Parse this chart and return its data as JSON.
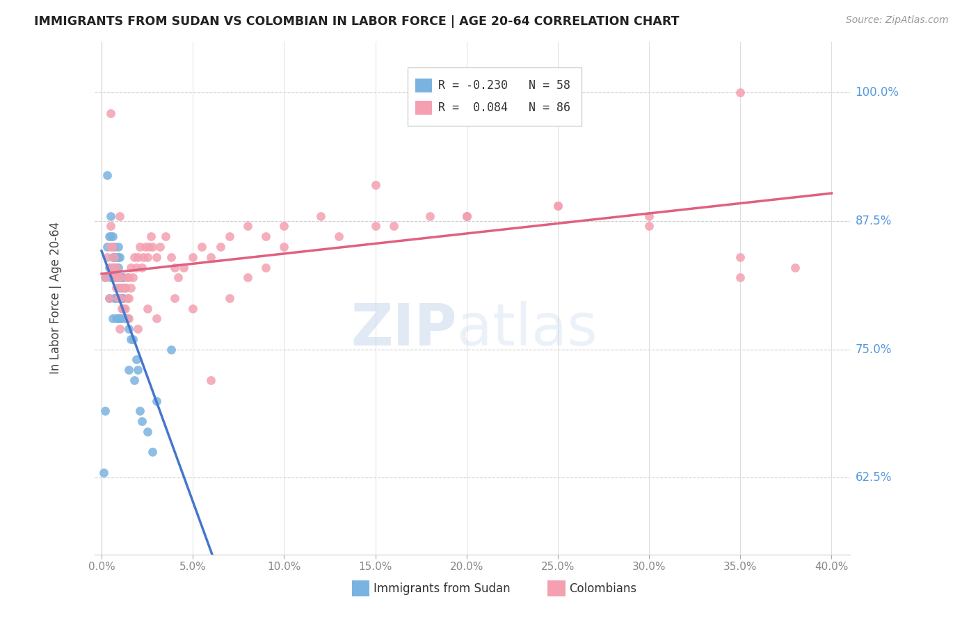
{
  "title": "IMMIGRANTS FROM SUDAN VS COLOMBIAN IN LABOR FORCE | AGE 20-64 CORRELATION CHART",
  "source": "Source: ZipAtlas.com",
  "ylabel": "In Labor Force | Age 20-64",
  "xlim": [
    0.0,
    0.4
  ],
  "ylim": [
    0.55,
    1.05
  ],
  "yticks": [
    0.625,
    0.75,
    0.875,
    1.0
  ],
  "ytick_labels": [
    "62.5%",
    "75.0%",
    "87.5%",
    "100.0%"
  ],
  "sudan_color": "#7BB3E0",
  "colombian_color": "#F4A0B0",
  "sudan_line_color": "#4477CC",
  "colombian_line_color": "#E06080",
  "dashed_line_color": "#AACCEE",
  "sudan_R": -0.23,
  "sudan_N": 58,
  "colombian_R": 0.084,
  "colombian_N": 86,
  "legend_label_sudan": "Immigrants from Sudan",
  "legend_label_colombian": "Colombians",
  "sudan_scatter_x": [
    0.001,
    0.002,
    0.002,
    0.003,
    0.003,
    0.004,
    0.004,
    0.004,
    0.005,
    0.005,
    0.005,
    0.006,
    0.006,
    0.006,
    0.006,
    0.007,
    0.007,
    0.007,
    0.007,
    0.007,
    0.008,
    0.008,
    0.008,
    0.008,
    0.008,
    0.009,
    0.009,
    0.009,
    0.009,
    0.009,
    0.009,
    0.01,
    0.01,
    0.01,
    0.01,
    0.01,
    0.011,
    0.011,
    0.011,
    0.012,
    0.012,
    0.012,
    0.013,
    0.013,
    0.014,
    0.015,
    0.015,
    0.016,
    0.017,
    0.018,
    0.019,
    0.02,
    0.021,
    0.022,
    0.025,
    0.028,
    0.03,
    0.038
  ],
  "sudan_scatter_y": [
    0.63,
    0.69,
    0.82,
    0.85,
    0.92,
    0.8,
    0.83,
    0.86,
    0.82,
    0.86,
    0.88,
    0.78,
    0.82,
    0.84,
    0.86,
    0.8,
    0.82,
    0.83,
    0.84,
    0.85,
    0.78,
    0.8,
    0.82,
    0.83,
    0.84,
    0.78,
    0.8,
    0.82,
    0.83,
    0.84,
    0.85,
    0.78,
    0.8,
    0.81,
    0.82,
    0.84,
    0.78,
    0.8,
    0.82,
    0.79,
    0.8,
    0.82,
    0.78,
    0.81,
    0.78,
    0.73,
    0.77,
    0.76,
    0.76,
    0.72,
    0.74,
    0.73,
    0.69,
    0.68,
    0.67,
    0.65,
    0.7,
    0.75
  ],
  "colombian_scatter_x": [
    0.002,
    0.003,
    0.004,
    0.005,
    0.005,
    0.006,
    0.006,
    0.007,
    0.007,
    0.008,
    0.008,
    0.009,
    0.009,
    0.01,
    0.01,
    0.011,
    0.011,
    0.012,
    0.012,
    0.013,
    0.013,
    0.014,
    0.014,
    0.015,
    0.015,
    0.016,
    0.016,
    0.017,
    0.018,
    0.019,
    0.02,
    0.021,
    0.022,
    0.023,
    0.024,
    0.025,
    0.026,
    0.027,
    0.028,
    0.03,
    0.032,
    0.035,
    0.038,
    0.04,
    0.042,
    0.045,
    0.05,
    0.055,
    0.06,
    0.065,
    0.07,
    0.08,
    0.09,
    0.1,
    0.12,
    0.15,
    0.18,
    0.2,
    0.25,
    0.3,
    0.35,
    0.005,
    0.01,
    0.015,
    0.02,
    0.025,
    0.03,
    0.04,
    0.05,
    0.06,
    0.07,
    0.08,
    0.09,
    0.1,
    0.13,
    0.16,
    0.2,
    0.25,
    0.3,
    0.35,
    0.38,
    0.005,
    0.15,
    0.2,
    0.35,
    0.01
  ],
  "colombian_scatter_y": [
    0.82,
    0.84,
    0.8,
    0.85,
    0.87,
    0.83,
    0.85,
    0.82,
    0.84,
    0.81,
    0.83,
    0.8,
    0.82,
    0.8,
    0.82,
    0.79,
    0.81,
    0.79,
    0.81,
    0.79,
    0.81,
    0.8,
    0.82,
    0.8,
    0.82,
    0.81,
    0.83,
    0.82,
    0.84,
    0.83,
    0.84,
    0.85,
    0.83,
    0.84,
    0.85,
    0.84,
    0.85,
    0.86,
    0.85,
    0.84,
    0.85,
    0.86,
    0.84,
    0.83,
    0.82,
    0.83,
    0.84,
    0.85,
    0.84,
    0.85,
    0.86,
    0.87,
    0.86,
    0.87,
    0.88,
    0.87,
    0.88,
    0.88,
    0.89,
    0.88,
    0.82,
    0.83,
    0.77,
    0.78,
    0.77,
    0.79,
    0.78,
    0.8,
    0.79,
    0.72,
    0.8,
    0.82,
    0.83,
    0.85,
    0.86,
    0.87,
    0.88,
    0.89,
    0.87,
    0.84,
    0.83,
    0.98,
    0.91,
    0.88,
    1.0,
    0.88
  ]
}
